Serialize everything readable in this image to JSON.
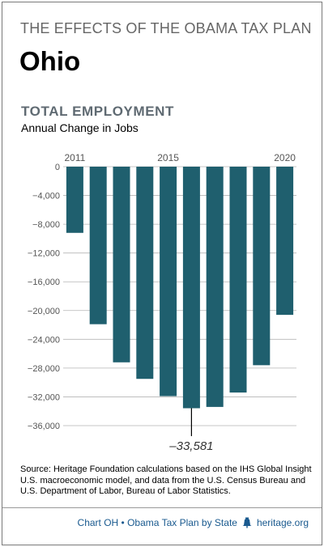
{
  "header": {
    "title": "THE EFFECTS OF THE OBAMA TAX PLAN",
    "state": "Ohio"
  },
  "chart_data": {
    "type": "bar",
    "title": "TOTAL EMPLOYMENT",
    "subtitle": "Annual Change in Jobs",
    "categories": [
      "2011",
      "2012",
      "2013",
      "2014",
      "2015",
      "2016",
      "2017",
      "2018",
      "2019",
      "2020"
    ],
    "x_tick_labels": [
      "2011",
      "2015",
      "2020"
    ],
    "values": [
      -9200,
      -21900,
      -27200,
      -29500,
      -31900,
      -33581,
      -33400,
      -31400,
      -27600,
      -20600
    ],
    "ylim": [
      -38000,
      0
    ],
    "yticks": [
      0,
      -4000,
      -8000,
      -12000,
      -16000,
      -20000,
      -24000,
      -28000,
      -32000,
      -36000
    ],
    "ytick_labels": [
      "0",
      "−4,000",
      "−8,000",
      "−12,000",
      "−16,000",
      "−20,000",
      "−24,000",
      "−28,000",
      "−32,000",
      "−36,000"
    ],
    "grid": true,
    "annotation": {
      "text": "–33,581",
      "category": "2016"
    },
    "bar_color": "#1f5f6e"
  },
  "source": {
    "label": "Source:",
    "text": " Heritage Foundation calculations based on the IHS Global Insight U.S. macroeconomic model, and data from the U.S. Census Bureau and U.S. Department of Labor, Bureau of Labor Statistics."
  },
  "footer": {
    "chart_id": "Chart OH • Obama Tax Plan by State",
    "site": "heritage.org",
    "icon": "liberty-bell-icon",
    "color": "#1a5a8f"
  }
}
